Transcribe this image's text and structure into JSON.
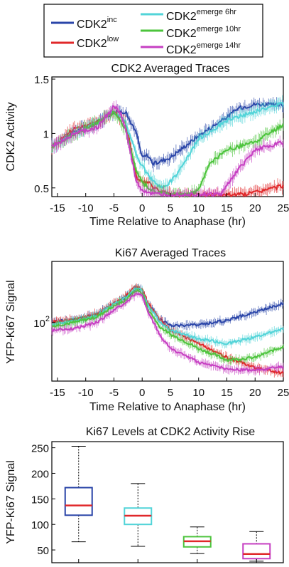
{
  "legend": {
    "items": [
      {
        "base": "CDK2",
        "sup": "inc",
        "color": "#2a45a8"
      },
      {
        "base": "CDK2",
        "sup": "low",
        "color": "#e0282a"
      },
      {
        "base": "CDK2",
        "sup": "emerge 6hr",
        "color": "#52d4d8"
      },
      {
        "base": "CDK2",
        "sup": "emerge 10hr",
        "color": "#4cc43c"
      },
      {
        "base": "CDK2",
        "sup": "emerge 14hr",
        "color": "#c63fc2"
      }
    ]
  },
  "chart_data": [
    {
      "type": "line",
      "title": "CDK2 Averaged Traces",
      "xlabel": "Time Relative to Anaphase (hr)",
      "ylabel": "CDK2 Activity",
      "xlim": [
        -16,
        25
      ],
      "ylim": [
        0.42,
        1.52
      ],
      "xticks": [
        -15,
        -10,
        -5,
        0,
        5,
        10,
        15,
        20,
        25
      ],
      "yticks": [
        0.5,
        1,
        1.5
      ],
      "yticklabels": [
        "0.5",
        "1",
        "1.5"
      ],
      "series": [
        {
          "color": "#2a45a8",
          "x": [
            -16,
            -12,
            -8,
            -5,
            -3,
            -1,
            0,
            1,
            2,
            5,
            10,
            15,
            17,
            20,
            25
          ],
          "y": [
            0.88,
            1.02,
            1.1,
            1.2,
            1.2,
            1.0,
            0.78,
            0.8,
            0.72,
            0.78,
            0.98,
            1.15,
            1.23,
            1.27,
            1.26
          ]
        },
        {
          "color": "#e0282a",
          "x": [
            -16,
            -12,
            -8,
            -5,
            -3,
            -1,
            0,
            1,
            3,
            5,
            10,
            15,
            18,
            20,
            25
          ],
          "y": [
            0.88,
            1.05,
            1.1,
            1.2,
            1.12,
            0.6,
            0.55,
            0.55,
            0.47,
            0.44,
            0.44,
            0.44,
            0.44,
            0.46,
            0.52
          ]
        },
        {
          "color": "#52d4d8",
          "x": [
            -16,
            -12,
            -8,
            -5,
            -3,
            -1,
            0,
            2,
            4,
            6,
            8,
            10,
            15,
            20,
            25
          ],
          "y": [
            0.88,
            1.0,
            1.1,
            1.2,
            1.1,
            0.8,
            0.7,
            0.55,
            0.5,
            0.62,
            0.78,
            0.95,
            1.12,
            1.2,
            1.28
          ]
        },
        {
          "color": "#4cc43c",
          "x": [
            -16,
            -12,
            -8,
            -5,
            -3,
            -1,
            0,
            2,
            5,
            8,
            10,
            12,
            15,
            20,
            25
          ],
          "y": [
            0.88,
            1.0,
            1.1,
            1.2,
            1.05,
            0.65,
            0.55,
            0.47,
            0.44,
            0.44,
            0.48,
            0.72,
            0.85,
            0.92,
            1.08
          ]
        },
        {
          "color": "#c63fc2",
          "x": [
            -16,
            -12,
            -8,
            -5,
            -4,
            -3,
            -1,
            0,
            2,
            5,
            10,
            14,
            16,
            20,
            25
          ],
          "y": [
            0.88,
            1.0,
            1.05,
            1.25,
            1.2,
            1.05,
            0.55,
            0.48,
            0.44,
            0.44,
            0.44,
            0.44,
            0.6,
            0.85,
            0.92
          ]
        }
      ]
    },
    {
      "type": "line",
      "title": "Ki67 Averaged Traces",
      "xlabel": "Time Relative to Anaphase (hr)",
      "ylabel": "YFP-Ki67 Signal",
      "scale": "log",
      "xlim": [
        -16,
        25
      ],
      "ylim": [
        45,
        230
      ],
      "xticks": [
        -15,
        -10,
        -5,
        0,
        5,
        10,
        15,
        20,
        25
      ],
      "yticks": [
        100
      ],
      "yticklabels": [
        "10^2"
      ],
      "series": [
        {
          "color": "#2a45a8",
          "x": [
            -16,
            -12,
            -8,
            -5,
            -3,
            -1,
            0,
            1,
            3,
            5,
            10,
            15,
            20,
            25
          ],
          "y": [
            101,
            104,
            112,
            130,
            140,
            160,
            155,
            130,
            105,
            96,
            97,
            103,
            115,
            130
          ]
        },
        {
          "color": "#e0282a",
          "x": [
            -16,
            -12,
            -8,
            -5,
            -3,
            -1,
            0,
            1,
            3,
            5,
            10,
            15,
            20,
            25
          ],
          "y": [
            101,
            104,
            112,
            130,
            142,
            165,
            158,
            130,
            105,
            90,
            75,
            62,
            54,
            50
          ]
        },
        {
          "color": "#52d4d8",
          "x": [
            -16,
            -12,
            -8,
            -5,
            -3,
            -1,
            0,
            1,
            3,
            5,
            10,
            15,
            20,
            25
          ],
          "y": [
            97,
            102,
            110,
            128,
            140,
            160,
            155,
            126,
            102,
            90,
            80,
            75,
            82,
            92
          ]
        },
        {
          "color": "#4cc43c",
          "x": [
            -16,
            -12,
            -8,
            -5,
            -3,
            -1,
            0,
            1,
            3,
            5,
            10,
            15,
            20,
            25
          ],
          "y": [
            95,
            100,
            108,
            125,
            135,
            155,
            150,
            120,
            95,
            85,
            70,
            60,
            62,
            72
          ]
        },
        {
          "color": "#c63fc2",
          "x": [
            -16,
            -12,
            -8,
            -5,
            -3,
            -1,
            0,
            1,
            3,
            5,
            10,
            15,
            20,
            25
          ],
          "y": [
            90,
            92,
            100,
            118,
            130,
            150,
            145,
            115,
            85,
            70,
            58,
            53,
            52,
            55
          ]
        }
      ]
    },
    {
      "type": "box",
      "title": "Ki67 Levels at CDK2 Activity Rise",
      "ylabel": "YFP-Ki67 Signal",
      "ylim": [
        25,
        262
      ],
      "yticks": [
        50,
        100,
        150,
        200,
        250
      ],
      "boxes": [
        {
          "color": "#2a45a8",
          "whisker_low": 66,
          "q1": 118,
          "median": 137,
          "q3": 172,
          "whisker_high": 253
        },
        {
          "color": "#52d4d8",
          "whisker_low": 57,
          "q1": 100,
          "median": 117,
          "q3": 132,
          "whisker_high": 180
        },
        {
          "color": "#4cc43c",
          "whisker_low": 43,
          "q1": 56,
          "median": 67,
          "q3": 76,
          "whisker_high": 95
        },
        {
          "color": "#c63fc2",
          "whisker_low": 28,
          "q1": 33,
          "median": 42,
          "q3": 62,
          "whisker_high": 86
        }
      ]
    }
  ]
}
